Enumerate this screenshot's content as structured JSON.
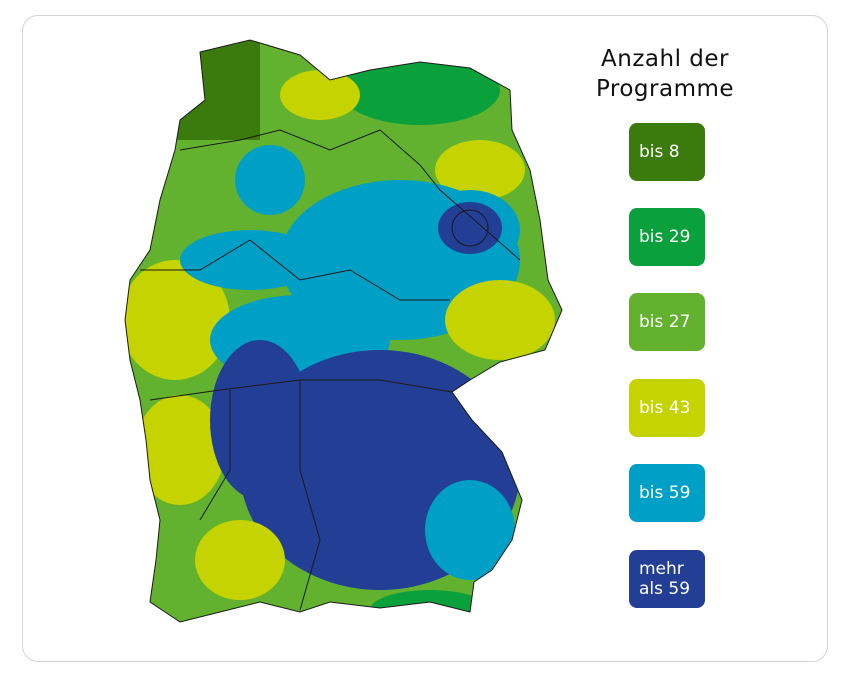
{
  "legend": {
    "title": "Anzahl der Programme",
    "items": [
      {
        "label": "bis 8",
        "color": "#3b7a0c"
      },
      {
        "label": "bis 29",
        "color": "#0aa03c"
      },
      {
        "label": "bis 27",
        "color": "#62b22f"
      },
      {
        "label": "bis 43",
        "color": "#c5d300"
      },
      {
        "label": "bis 59",
        "color": "#009fc5"
      },
      {
        "label": "mehr als 59",
        "color": "#233f95"
      }
    ]
  }
}
